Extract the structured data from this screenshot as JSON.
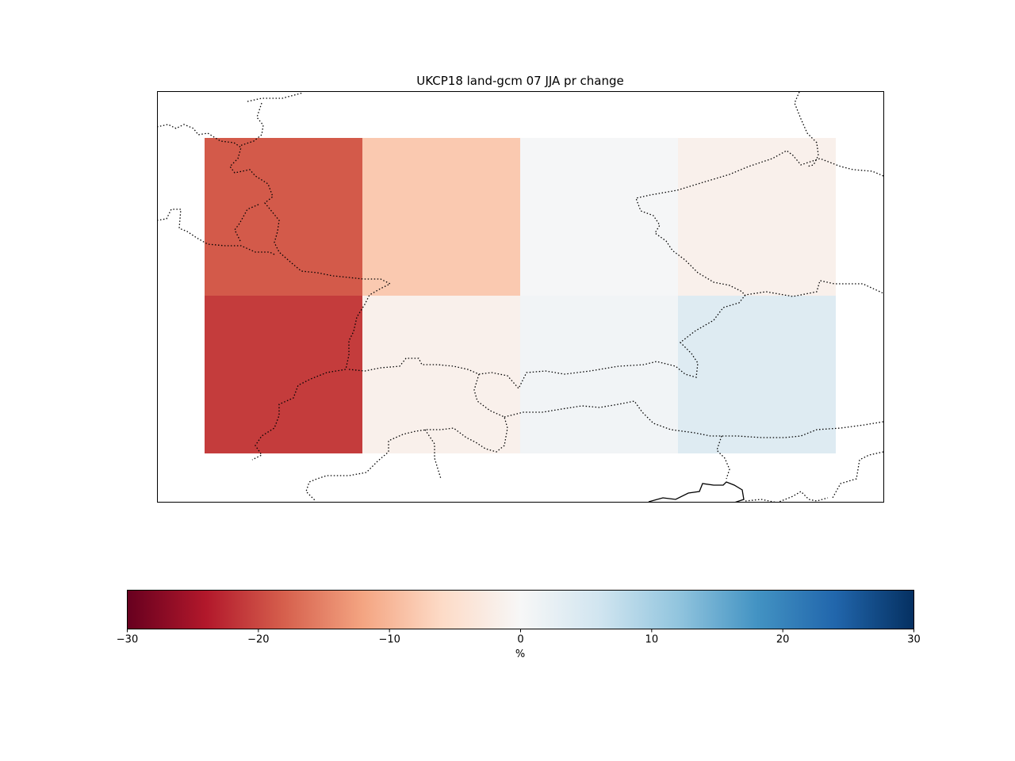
{
  "chart_data": {
    "type": "heatmap",
    "title": "UKCP18 land-gcm 07 JJA pr change",
    "rows": 2,
    "cols": 4,
    "values": [
      [
        -18.5,
        -8.0,
        0.3,
        -1.5
      ],
      [
        -21.0,
        -1.5,
        1.0,
        4.0
      ]
    ],
    "colorbar": {
      "label": "%",
      "vmin": -30,
      "vmax": 30,
      "colormap": "RdBu",
      "ticks": [
        -30,
        -20,
        -10,
        0,
        10,
        20,
        30
      ],
      "tick_labels": [
        "−30",
        "−20",
        "−10",
        "0",
        "10",
        "20",
        "30"
      ],
      "orientation": "horizontal"
    },
    "colormap_stops": [
      "#67001f",
      "#b2182b",
      "#d6604d",
      "#f4a582",
      "#fddbc7",
      "#f7f7f7",
      "#d1e5f0",
      "#92c5de",
      "#4393c3",
      "#2166ac",
      "#053061"
    ],
    "grid": false
  }
}
